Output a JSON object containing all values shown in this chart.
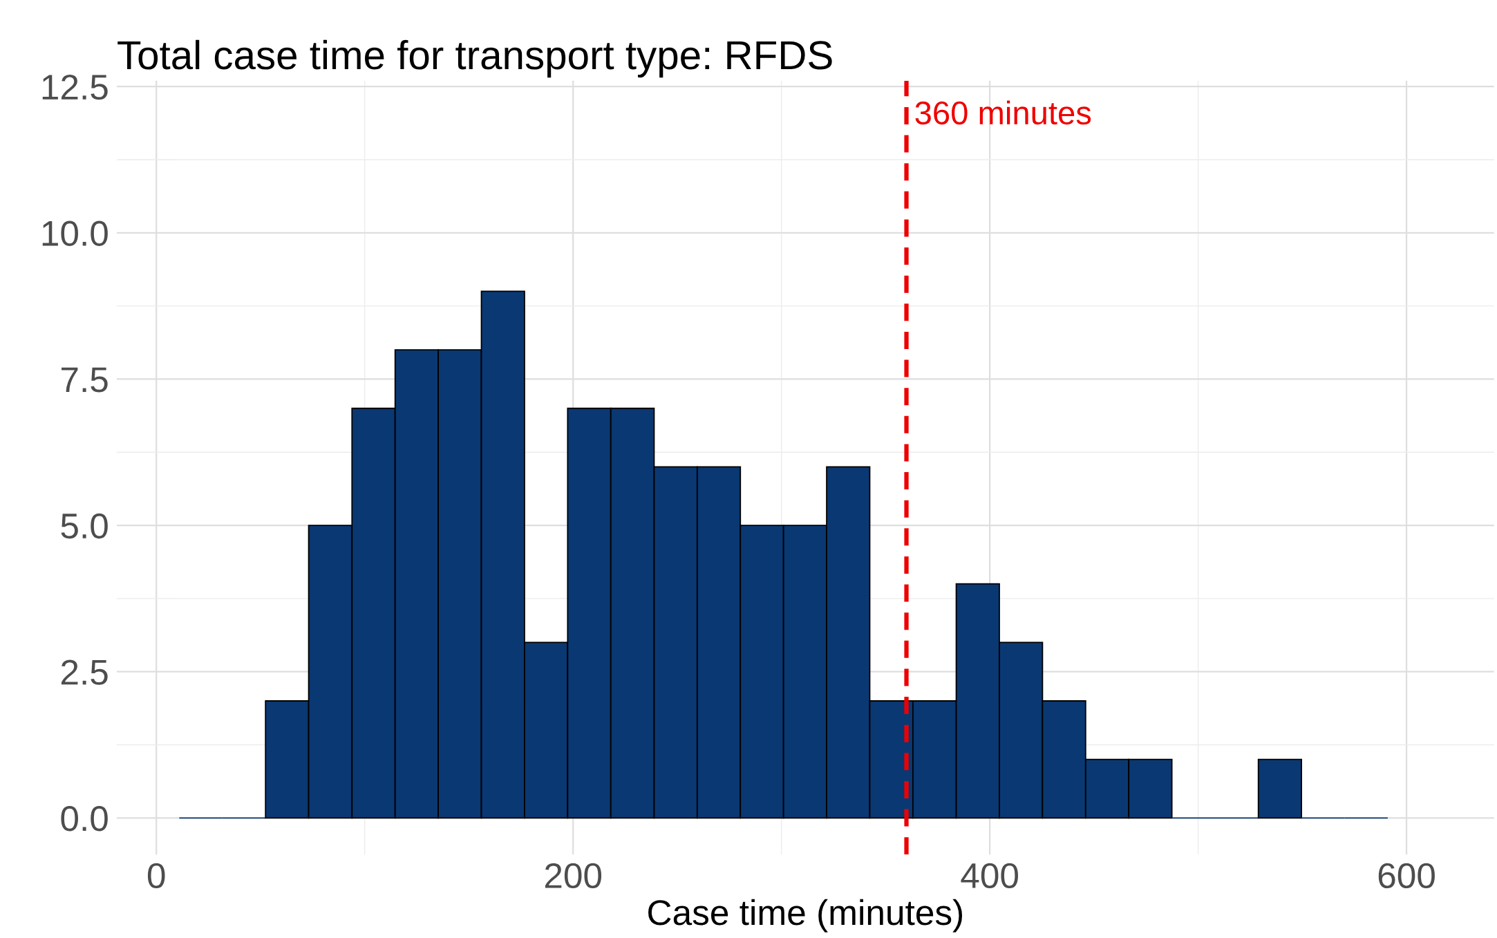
{
  "chart_data": {
    "type": "histogram",
    "title": "Total case time for transport type: RFDS",
    "xlabel": "Case time (minutes)",
    "bins": [
      11,
      31.7,
      52.4,
      73.1,
      93.9,
      114.6,
      135.3,
      156.0,
      176.7,
      197.4,
      218.1,
      238.9,
      259.6,
      280.3,
      301.0,
      321.7,
      342.4,
      363.1,
      383.9,
      404.6,
      425.3,
      446.0,
      466.7,
      487.4,
      508.1,
      528.9,
      549.6,
      570.3,
      591.0
    ],
    "values": [
      0,
      0,
      2,
      5,
      7,
      8,
      8,
      9,
      3,
      7,
      7,
      6,
      6,
      5,
      5,
      6,
      2,
      2,
      4,
      3,
      2,
      1,
      1,
      0,
      0,
      1,
      0,
      0
    ],
    "color": "#0a3872",
    "xlim": [
      -19,
      642
    ],
    "xticks": [
      0,
      200,
      400,
      600
    ],
    "ylim": [
      -0.625,
      12.6
    ],
    "yticks": [
      {
        "value": 0,
        "label": "0.0"
      },
      2.5,
      {
        "value": 5,
        "label": "5.0"
      },
      7.5,
      {
        "value": 10,
        "label": "10.0"
      },
      12.5
    ],
    "ref_lines": [
      {
        "axis": "x",
        "value": 360,
        "color": "#ee0000",
        "line_style": "dashed"
      }
    ],
    "annotations": [
      {
        "text": "360 minutes",
        "x": 360,
        "y": 12
      }
    ],
    "grid": true
  }
}
